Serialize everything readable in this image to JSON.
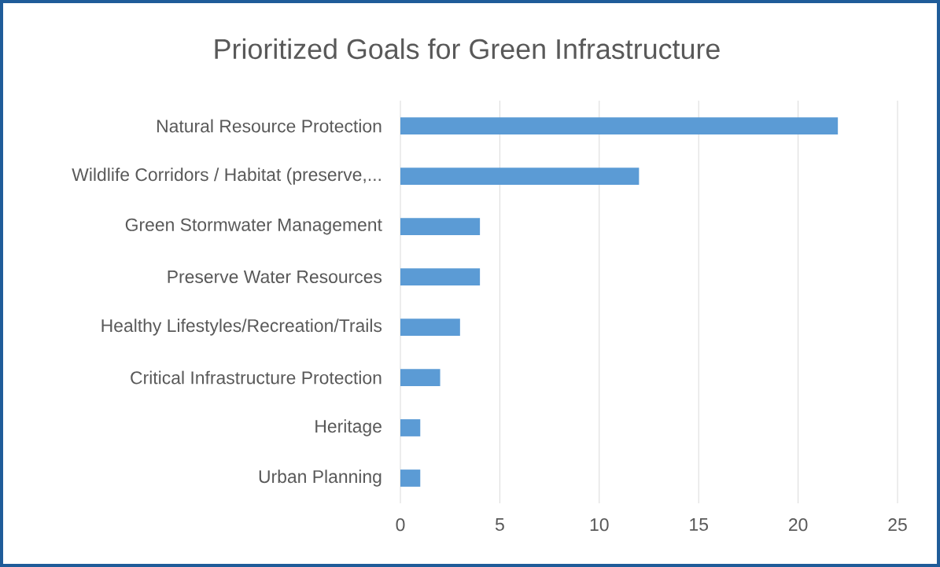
{
  "chart_data": {
    "type": "bar",
    "orientation": "horizontal",
    "title": "Prioritized Goals for Green Infrastructure",
    "categories": [
      "Natural Resource Protection",
      "Wildlife Corridors / Habitat (preserve,...",
      "Green Stormwater Management",
      "Preserve Water Resources",
      "Healthy Lifestyles/Recreation/Trails",
      "Critical Infrastructure Protection",
      "Heritage",
      "Urban Planning"
    ],
    "values": [
      22,
      12,
      4,
      4,
      3,
      2,
      1,
      1
    ],
    "color": "#5b9bd5",
    "xlim": [
      0,
      25
    ],
    "xticks": [
      0,
      5,
      10,
      15,
      20,
      25
    ],
    "grid": "x"
  }
}
